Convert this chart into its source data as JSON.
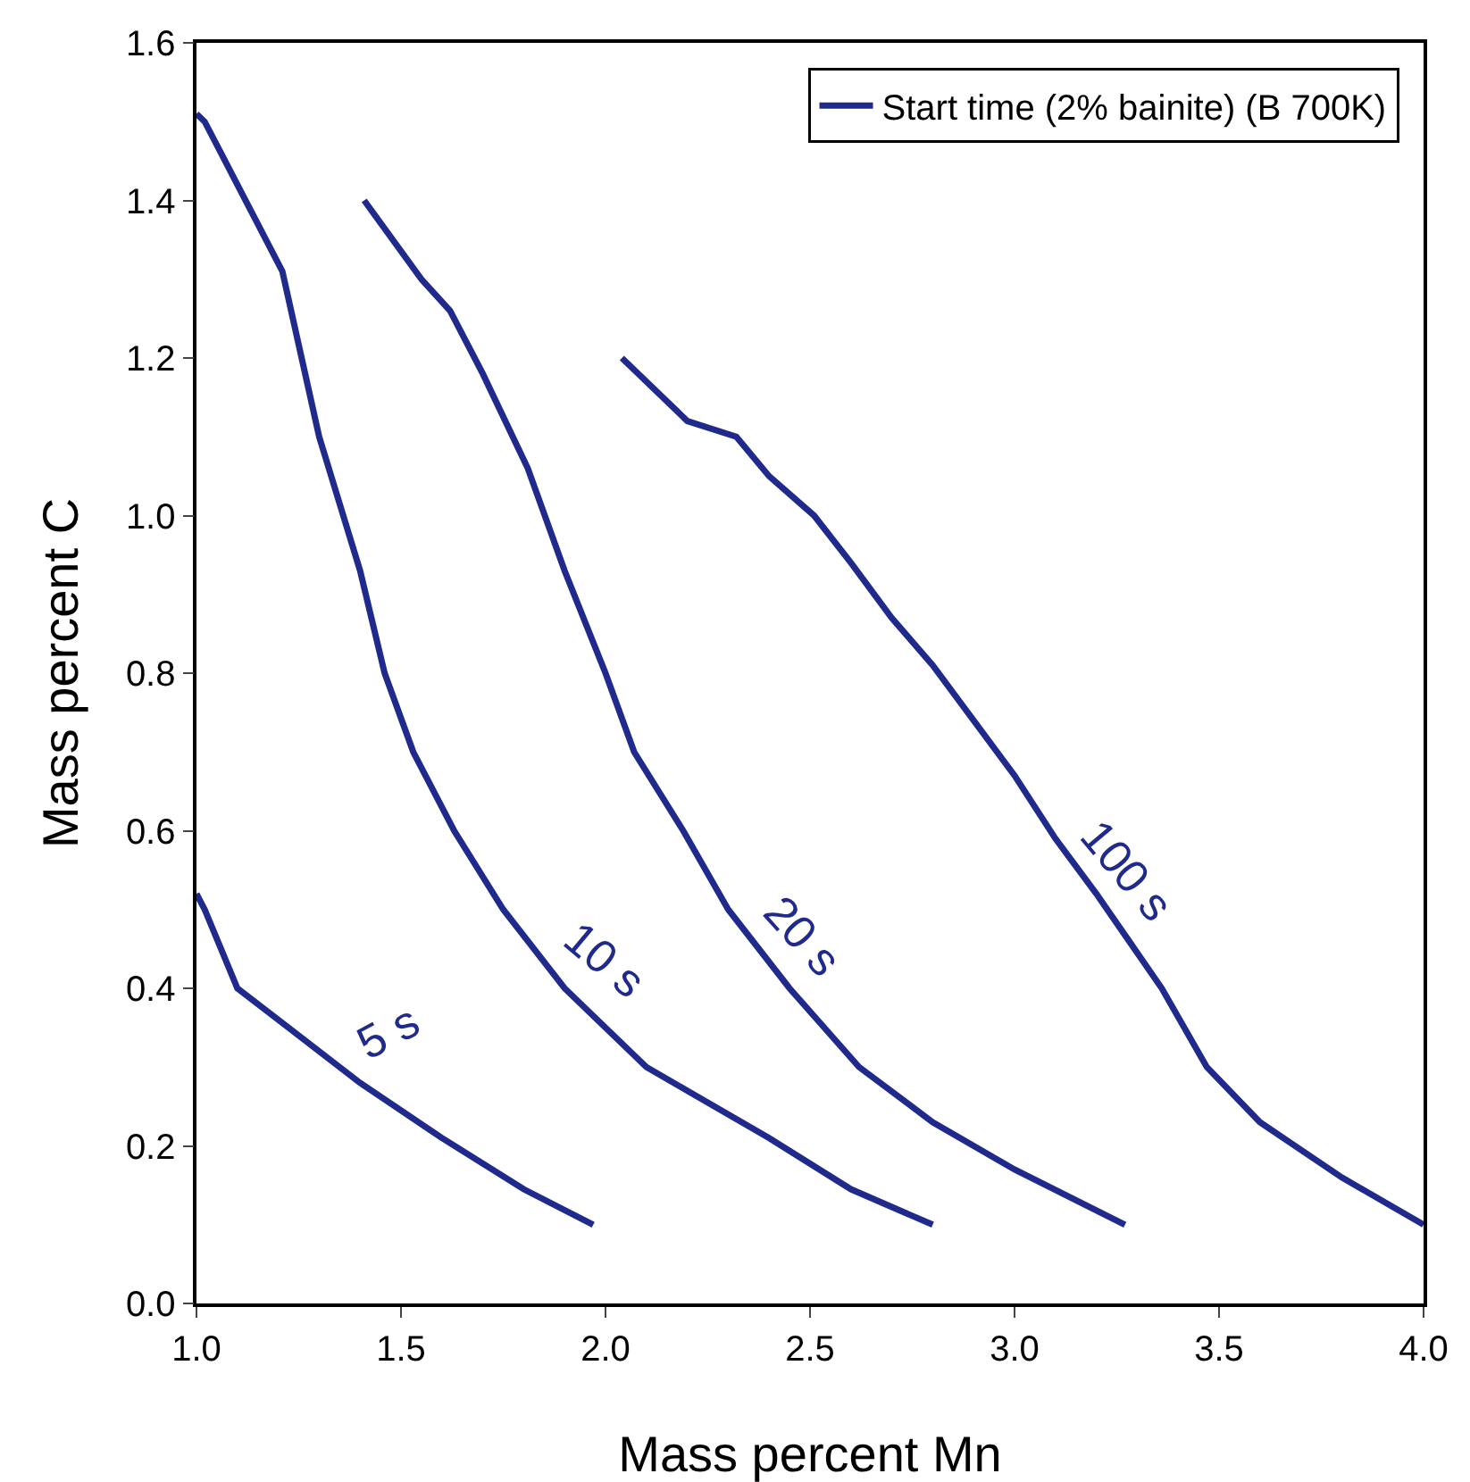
{
  "chart_data": {
    "type": "line",
    "xlabel": "Mass percent Mn",
    "ylabel": "Mass percent C",
    "xlim": [
      1.0,
      4.0
    ],
    "xticks": [
      {
        "value": 1.0,
        "label": "1.0"
      },
      {
        "value": 1.5,
        "label": "1.5"
      },
      {
        "value": 2.0,
        "label": "2.0"
      },
      {
        "value": 2.5,
        "label": "2.5"
      },
      {
        "value": 3.0,
        "label": "3.0"
      },
      {
        "value": 3.5,
        "label": "3.5"
      },
      {
        "value": 4.0,
        "label": "4.0"
      }
    ],
    "ylim": [
      0.0,
      1.6
    ],
    "yticks": [
      {
        "value": 0,
        "label": "0.0"
      },
      0.2,
      0.4,
      0.6,
      0.8,
      {
        "value": 1.0,
        "label": "1.0"
      },
      1.2,
      1.4,
      1.6
    ],
    "grid": false,
    "legend": "top right",
    "marker": "none",
    "line_style": "solid",
    "series": [
      {
        "name": "Start time (2% bainite) (B 700K)",
        "color": "#1f2a8c",
        "x": [
          1.0,
          1.02,
          1.1,
          1.2,
          1.4,
          1.6,
          1.8,
          1.97,
          null,
          1.0,
          1.02,
          1.21,
          1.3,
          1.4,
          1.46,
          1.53,
          1.63,
          1.75,
          1.9,
          2.1,
          2.2,
          2.4,
          2.6,
          2.8,
          null,
          1.41,
          1.55,
          1.62,
          1.7,
          1.81,
          1.9,
          2.0,
          2.07,
          2.19,
          2.3,
          2.45,
          2.62,
          2.8,
          3.0,
          3.27,
          null,
          2.04,
          2.2,
          2.32,
          2.4,
          2.51,
          2.6,
          2.7,
          2.8,
          3.0,
          3.1,
          3.2,
          3.36,
          3.47,
          3.6,
          3.8,
          4.0
        ],
        "values": [
          0.52,
          0.5,
          0.4,
          0.36,
          0.28,
          0.21,
          0.145,
          0.1,
          null,
          1.51,
          1.5,
          1.31,
          1.1,
          0.93,
          0.8,
          0.7,
          0.6,
          0.5,
          0.4,
          0.3,
          0.27,
          0.21,
          0.145,
          0.1,
          null,
          1.4,
          1.3,
          1.26,
          1.18,
          1.06,
          0.93,
          0.8,
          0.7,
          0.6,
          0.5,
          0.4,
          0.3,
          0.23,
          0.17,
          0.1,
          null,
          1.2,
          1.12,
          1.1,
          1.05,
          1.0,
          0.94,
          0.87,
          0.81,
          0.67,
          0.59,
          0.52,
          0.4,
          0.3,
          0.23,
          0.16,
          0.1
        ]
      }
    ],
    "annotations": [
      "5 s",
      "10 s",
      "20 s",
      "100 s"
    ]
  }
}
